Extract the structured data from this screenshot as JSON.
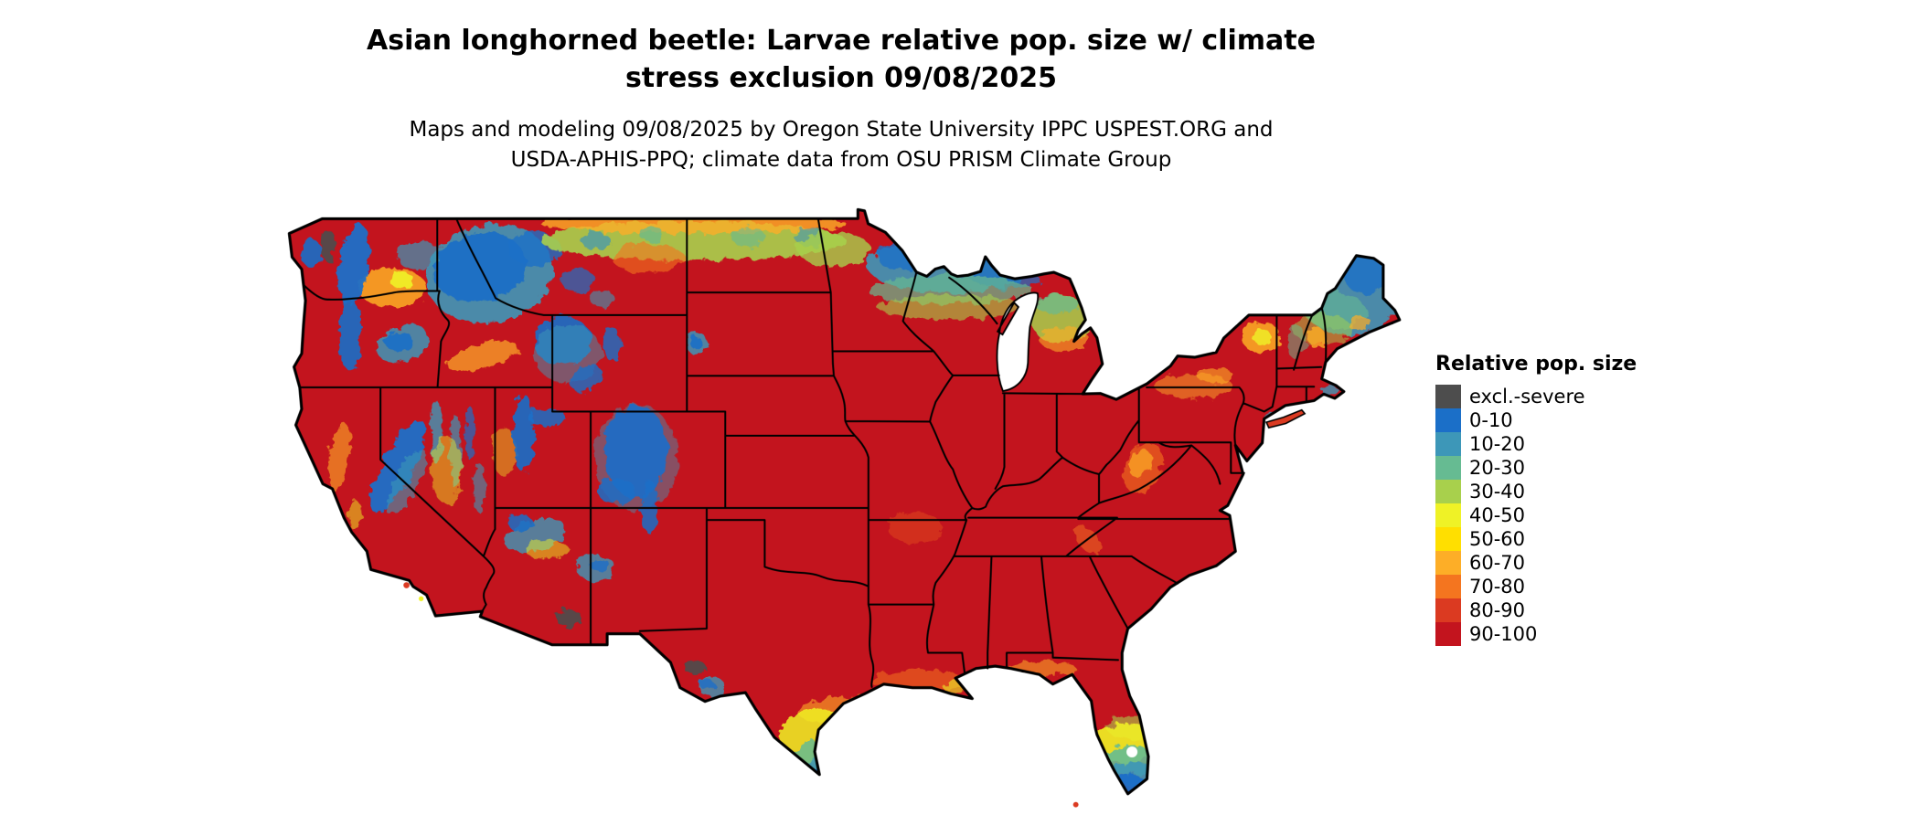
{
  "header": {
    "title_line1": "Asian longhorned beetle: Larvae relative pop. size w/ climate",
    "title_line2": "stress exclusion 09/08/2025",
    "subtitle_line1": "Maps and modeling 09/08/2025 by Oregon State University IPPC USPEST.ORG and",
    "subtitle_line2": "USDA-APHIS-PPQ; climate data from OSU PRISM Climate Group"
  },
  "legend": {
    "title": "Relative pop. size",
    "items": [
      {
        "label": "excl.-severe",
        "color": "#4d4d4d"
      },
      {
        "label": "0-10",
        "color": "#1b6fc8"
      },
      {
        "label": "10-20",
        "color": "#3d97b8"
      },
      {
        "label": "20-30",
        "color": "#66bb92"
      },
      {
        "label": "30-40",
        "color": "#a8d04c"
      },
      {
        "label": "40-50",
        "color": "#eff226"
      },
      {
        "label": "50-60",
        "color": "#ffdf00"
      },
      {
        "label": "60-70",
        "color": "#fdae27"
      },
      {
        "label": "70-80",
        "color": "#f4751f"
      },
      {
        "label": "80-90",
        "color": "#db3a21"
      },
      {
        "label": "90-100",
        "color": "#c3141e"
      }
    ]
  }
}
